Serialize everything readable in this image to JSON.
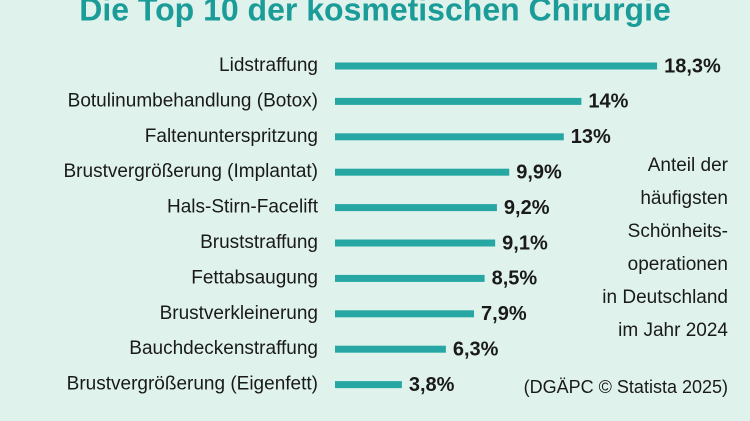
{
  "chart_data": {
    "type": "bar",
    "orientation": "horizontal",
    "title": "Die Top 10 der kosmetischen Chirurgie",
    "categories": [
      "Lidstraffung",
      "Botulinumbehandlung (Botox)",
      "Faltenunterspritzung",
      "Brustvergrößerung (Implantat)",
      "Hals-Stirn-Facelift",
      "Bruststraffung",
      "Fettabsaugung",
      "Brustverkleinerung",
      "Bauchdeckenstraffung",
      "Brustvergrößerung (Eigenfett)"
    ],
    "values": [
      18.3,
      14,
      13,
      9.9,
      9.2,
      9.1,
      8.5,
      7.9,
      6.3,
      3.8
    ],
    "value_labels": [
      "18,3%",
      "14%",
      "13%",
      "9,9%",
      "9,2%",
      "9,1%",
      "8,5%",
      "7,9%",
      "6,3%",
      "3,8%"
    ],
    "color": "#27a7a3",
    "annotation_lines": [
      "Anteil der",
      "häufigsten",
      "Schönheits-",
      "operationen",
      "in Deutschland",
      "im Jahr 2024"
    ],
    "source": "(DGÄPC © Statista 2025)"
  }
}
